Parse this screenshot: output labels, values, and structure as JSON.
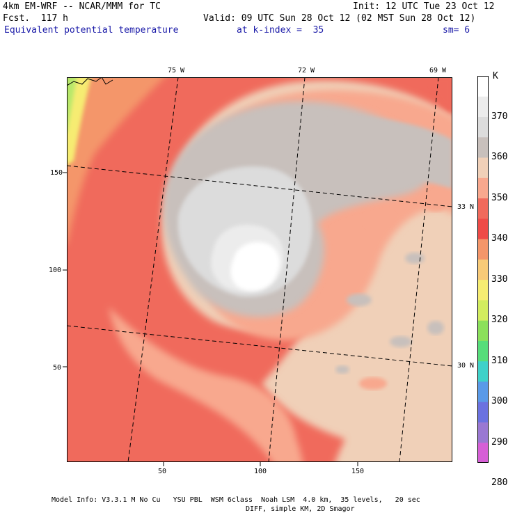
{
  "header": {
    "model": "4km EM-WRF -- NCAR/MMM for TC",
    "init": "Init: 12 UTC Tue 23 Oct 12",
    "fcst": "Fcst.  117 h",
    "valid": "Valid: 09 UTC Sun 28 Oct 12 (02 MST Sun 28 Oct 12)",
    "field": "Equivalent potential temperature",
    "level": "at k-index =  35",
    "smooth": "sm= 6"
  },
  "map": {
    "lon_labels": [
      "75 W",
      "72 W",
      "69 W"
    ],
    "lat_labels": [
      "33 N",
      "30 N"
    ],
    "x_ticks": [
      "50",
      "100",
      "150"
    ],
    "y_ticks": [
      "150",
      "100",
      "50"
    ],
    "grid_extent": {
      "x": [
        1,
        199
      ],
      "y": [
        1,
        199
      ]
    }
  },
  "colorbar": {
    "unit": "K",
    "labels": [
      "370",
      "360",
      "350",
      "340",
      "330",
      "320",
      "310",
      "300",
      "290",
      "280"
    ],
    "colors": [
      "#d65fd6",
      "#9a78d2",
      "#6b72e0",
      "#5a9ae8",
      "#3fd1c9",
      "#56dd7a",
      "#8be05b",
      "#d2ec5f",
      "#f6ec72",
      "#f8ca78",
      "#f4966a",
      "#ee4b47",
      "#f06a5c",
      "#f8a88e",
      "#f0d0b8",
      "#c8c0bc",
      "#dcdcdc",
      "#ececec",
      "#ffffff"
    ]
  },
  "footer": {
    "line1": "Model Info: V3.3.1 M No Cu   YSU PBL  WSM 6class  Noah LSM  4.0 km,  35 levels,   20 sec",
    "line2": "DIFF, simple KM, 2D Smagor"
  }
}
